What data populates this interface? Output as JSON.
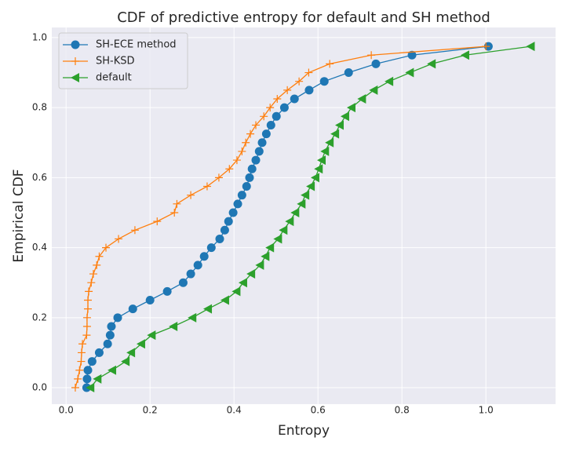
{
  "chart_data": {
    "type": "line",
    "title": "CDF of predictive entropy for default and SH method",
    "x_label": "Entropy",
    "y_label": "Empirical CDF",
    "xlim": [
      -0.034,
      1.166
    ],
    "ylim": [
      -0.047,
      1.029
    ],
    "xticks": [
      {
        "value": 0,
        "label": "0.0"
      },
      0.2,
      0.4,
      0.6,
      0.8,
      {
        "value": 1,
        "label": "1.0"
      }
    ],
    "yticks": [
      {
        "value": 0,
        "label": "0.0"
      },
      0.2,
      0.4,
      0.6,
      0.8,
      {
        "value": 1,
        "label": "1.0"
      }
    ],
    "grid": true,
    "legend": "upper left",
    "series": [
      {
        "name": "SH-ECE method",
        "color": "#1f77b4",
        "marker": "o",
        "x": [
          0.049,
          0.05,
          0.052,
          0.062,
          0.079,
          0.099,
          0.105,
          0.108,
          0.123,
          0.159,
          0.2,
          0.241,
          0.279,
          0.297,
          0.314,
          0.329,
          0.346,
          0.366,
          0.378,
          0.387,
          0.398,
          0.409,
          0.419,
          0.43,
          0.437,
          0.443,
          0.452,
          0.46,
          0.467,
          0.477,
          0.488,
          0.501,
          0.52,
          0.544,
          0.579,
          0.615,
          0.673,
          0.738,
          0.824,
          1.006
        ],
        "values": [
          0,
          0.025,
          0.05,
          0.075,
          0.1,
          0.125,
          0.15,
          0.175,
          0.2,
          0.225,
          0.25,
          0.275,
          0.3,
          0.325,
          0.35,
          0.375,
          0.4,
          0.425,
          0.45,
          0.475,
          0.5,
          0.525,
          0.55,
          0.575,
          0.6,
          0.625,
          0.65,
          0.675,
          0.7,
          0.725,
          0.75,
          0.775,
          0.8,
          0.825,
          0.85,
          0.875,
          0.9,
          0.925,
          0.95,
          0.975
        ]
      },
      {
        "name": "SH-KSD",
        "color": "#ff7f0e",
        "marker": "+",
        "x": [
          0.022,
          0.028,
          0.032,
          0.036,
          0.037,
          0.039,
          0.049,
          0.05,
          0.05,
          0.052,
          0.052,
          0.054,
          0.06,
          0.065,
          0.073,
          0.079,
          0.095,
          0.125,
          0.164,
          0.217,
          0.258,
          0.264,
          0.297,
          0.336,
          0.364,
          0.389,
          0.407,
          0.419,
          0.428,
          0.439,
          0.452,
          0.471,
          0.486,
          0.503,
          0.527,
          0.555,
          0.578,
          0.628,
          0.727,
          1.0
        ],
        "values": [
          0,
          0.025,
          0.05,
          0.075,
          0.1,
          0.125,
          0.15,
          0.175,
          0.2,
          0.225,
          0.25,
          0.275,
          0.3,
          0.325,
          0.35,
          0.375,
          0.4,
          0.425,
          0.45,
          0.475,
          0.5,
          0.525,
          0.55,
          0.575,
          0.6,
          0.625,
          0.65,
          0.675,
          0.7,
          0.725,
          0.75,
          0.775,
          0.8,
          0.825,
          0.85,
          0.875,
          0.9,
          0.925,
          0.95,
          0.975
        ]
      },
      {
        "name": "default",
        "color": "#2ca02c",
        "marker": "<",
        "x": [
          0.058,
          0.075,
          0.11,
          0.142,
          0.155,
          0.179,
          0.204,
          0.256,
          0.301,
          0.338,
          0.379,
          0.406,
          0.422,
          0.441,
          0.462,
          0.475,
          0.486,
          0.505,
          0.518,
          0.533,
          0.546,
          0.561,
          0.57,
          0.583,
          0.594,
          0.602,
          0.609,
          0.617,
          0.628,
          0.641,
          0.652,
          0.665,
          0.68,
          0.705,
          0.733,
          0.77,
          0.819,
          0.871,
          0.951,
          1.107
        ],
        "values": [
          0,
          0.025,
          0.05,
          0.075,
          0.1,
          0.125,
          0.15,
          0.175,
          0.2,
          0.225,
          0.25,
          0.275,
          0.3,
          0.325,
          0.35,
          0.375,
          0.4,
          0.425,
          0.45,
          0.475,
          0.5,
          0.525,
          0.55,
          0.575,
          0.6,
          0.625,
          0.65,
          0.675,
          0.7,
          0.725,
          0.75,
          0.775,
          0.8,
          0.825,
          0.85,
          0.875,
          0.9,
          0.925,
          0.95,
          0.975
        ]
      }
    ]
  }
}
